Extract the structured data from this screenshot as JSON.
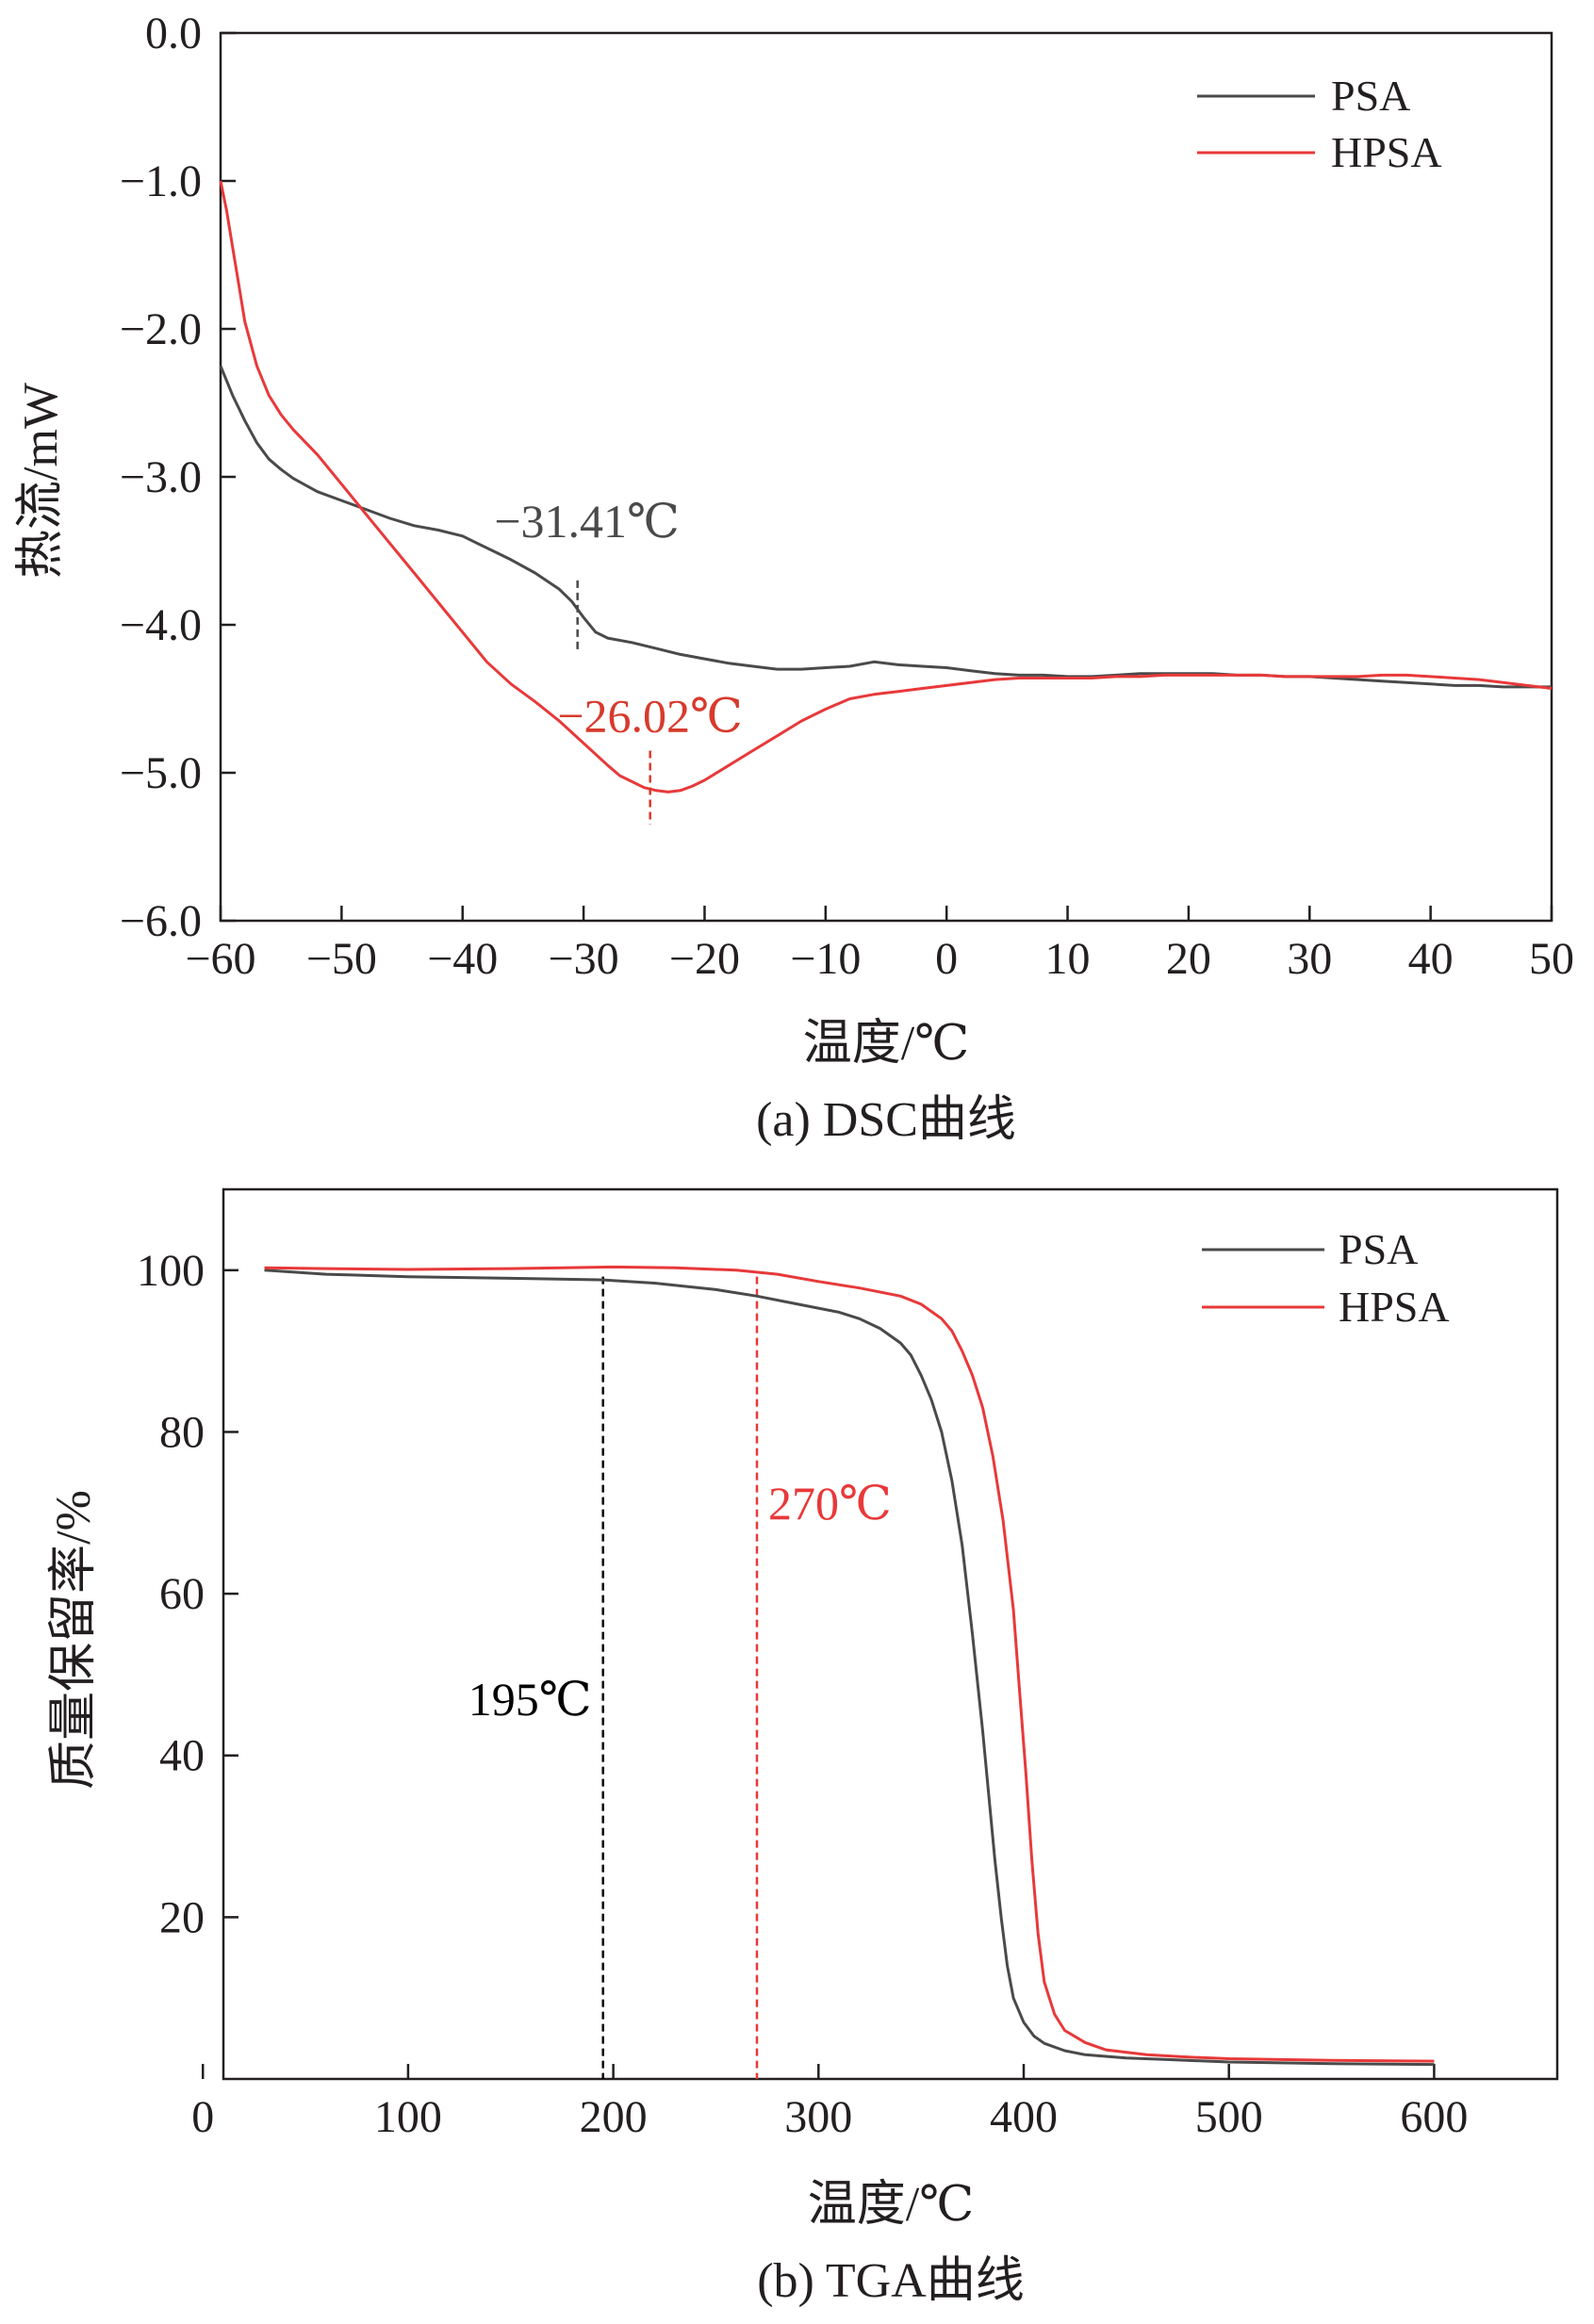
{
  "chart_data": [
    {
      "type": "line",
      "caption": "(a) DSC曲线",
      "xlabel": "温度/℃",
      "ylabel": "热流/mW",
      "xlim": [
        -60,
        50
      ],
      "ylim": [
        -6.0,
        0.0
      ],
      "xticks": [
        -60,
        -50,
        -40,
        -30,
        -20,
        -10,
        0,
        10,
        20,
        30,
        40,
        50
      ],
      "xtick_labels": [
        "−60",
        "−50",
        "−40",
        "−30",
        "−20",
        "−10",
        "0",
        "10",
        "20",
        "30",
        "40",
        "50"
      ],
      "yticks": [
        0,
        -1,
        -2,
        -3,
        -4,
        -5,
        -6
      ],
      "ytick_labels": [
        "0.0",
        "−1.0",
        "−2.0",
        "−3.0",
        "−4.0",
        "−5.0",
        "−6.0"
      ],
      "grid": false,
      "legend_position": "top-right",
      "series": [
        {
          "name": "PSA",
          "color": "#4a4a4a",
          "x": [
            -60,
            -59,
            -58,
            -57,
            -56,
            -55,
            -54,
            -52,
            -50,
            -48,
            -46,
            -44,
            -42,
            -40,
            -38,
            -36,
            -34,
            -32,
            -31,
            -30,
            -29,
            -28,
            -26,
            -24,
            -22,
            -20,
            -18,
            -16,
            -14,
            -12,
            -10,
            -8,
            -6,
            -4,
            -2,
            0,
            2,
            4,
            6,
            8,
            10,
            12,
            14,
            16,
            18,
            20,
            22,
            24,
            26,
            28,
            30,
            32,
            34,
            36,
            38,
            40,
            42,
            44,
            46,
            48,
            50
          ],
          "y": [
            -2.25,
            -2.45,
            -2.62,
            -2.77,
            -2.88,
            -2.95,
            -3.01,
            -3.1,
            -3.16,
            -3.22,
            -3.28,
            -3.33,
            -3.36,
            -3.4,
            -3.48,
            -3.56,
            -3.65,
            -3.76,
            -3.84,
            -3.95,
            -4.05,
            -4.09,
            -4.12,
            -4.16,
            -4.2,
            -4.23,
            -4.26,
            -4.28,
            -4.3,
            -4.3,
            -4.29,
            -4.28,
            -4.25,
            -4.27,
            -4.28,
            -4.29,
            -4.31,
            -4.33,
            -4.34,
            -4.34,
            -4.35,
            -4.35,
            -4.34,
            -4.33,
            -4.33,
            -4.33,
            -4.33,
            -4.34,
            -4.34,
            -4.35,
            -4.35,
            -4.36,
            -4.37,
            -4.38,
            -4.39,
            -4.4,
            -4.41,
            -4.41,
            -4.42,
            -4.42,
            -4.42
          ]
        },
        {
          "name": "HPSA",
          "color": "#e8393a",
          "x": [
            -60,
            -59.5,
            -59,
            -58.5,
            -58,
            -57,
            -56,
            -55,
            -54,
            -52,
            -50,
            -48,
            -46,
            -44,
            -42,
            -40,
            -38,
            -36,
            -34,
            -32,
            -30,
            -28,
            -27,
            -26,
            -25,
            -24,
            -23,
            -22,
            -21,
            -20,
            -18,
            -16,
            -14,
            -12,
            -10,
            -8,
            -6,
            -4,
            -2,
            0,
            2,
            4,
            6,
            8,
            10,
            12,
            14,
            16,
            18,
            20,
            22,
            24,
            26,
            28,
            30,
            32,
            34,
            36,
            38,
            40,
            42,
            44,
            46,
            48,
            50
          ],
          "y": [
            -1.0,
            -1.2,
            -1.45,
            -1.7,
            -1.95,
            -2.25,
            -2.45,
            -2.58,
            -2.68,
            -2.85,
            -3.05,
            -3.25,
            -3.45,
            -3.65,
            -3.85,
            -4.05,
            -4.25,
            -4.4,
            -4.52,
            -4.65,
            -4.8,
            -4.95,
            -5.02,
            -5.06,
            -5.1,
            -5.12,
            -5.13,
            -5.12,
            -5.09,
            -5.05,
            -4.95,
            -4.85,
            -4.75,
            -4.65,
            -4.57,
            -4.5,
            -4.47,
            -4.45,
            -4.43,
            -4.41,
            -4.39,
            -4.37,
            -4.36,
            -4.36,
            -4.36,
            -4.36,
            -4.35,
            -4.35,
            -4.34,
            -4.34,
            -4.34,
            -4.34,
            -4.34,
            -4.35,
            -4.35,
            -4.35,
            -4.35,
            -4.34,
            -4.34,
            -4.35,
            -4.36,
            -4.37,
            -4.39,
            -4.41,
            -4.43
          ]
        }
      ],
      "annotations": [
        {
          "text": "−31.41℃",
          "x": -30.5,
          "y_top": -3.7,
          "y_bottom": -4.17,
          "color": "#4a4a4a"
        },
        {
          "text": "−26.02℃",
          "x": -24.5,
          "y_top": -4.85,
          "y_bottom": -5.35,
          "color": "#d73a2c"
        }
      ]
    },
    {
      "type": "line",
      "caption": "(b) TGA曲线",
      "xlabel": "温度/℃",
      "ylabel": "质量保留率/%",
      "xlim": [
        10,
        660
      ],
      "ylim": [
        0,
        110
      ],
      "xticks": [
        0,
        100,
        200,
        300,
        400,
        500,
        600
      ],
      "xtick_labels": [
        "0",
        "100",
        "200",
        "300",
        "400",
        "500",
        "600"
      ],
      "yticks": [
        20,
        40,
        60,
        80,
        100
      ],
      "ytick_labels": [
        "20",
        "40",
        "60",
        "80",
        "100"
      ],
      "grid": false,
      "legend_position": "top-right",
      "series": [
        {
          "name": "PSA",
          "color": "#4a4a4a",
          "x": [
            30,
            60,
            100,
            150,
            195,
            220,
            250,
            270,
            290,
            310,
            320,
            330,
            340,
            345,
            350,
            355,
            360,
            365,
            370,
            375,
            380,
            383,
            386,
            389,
            392,
            395,
            400,
            405,
            410,
            420,
            430,
            450,
            470,
            500,
            550,
            600
          ],
          "y": [
            100,
            99.5,
            99.2,
            99.0,
            98.8,
            98.4,
            97.6,
            96.8,
            95.8,
            94.8,
            94.0,
            92.8,
            91.0,
            89.5,
            87.0,
            84.0,
            80.0,
            74.0,
            66.0,
            55.0,
            43.0,
            35.0,
            27.0,
            20.0,
            14.0,
            10.0,
            7.0,
            5.3,
            4.4,
            3.5,
            3.0,
            2.6,
            2.4,
            2.1,
            1.9,
            1.8
          ]
        },
        {
          "name": "HPSA",
          "color": "#e8393a",
          "x": [
            30,
            60,
            100,
            150,
            200,
            230,
            260,
            280,
            300,
            320,
            340,
            350,
            360,
            365,
            370,
            375,
            380,
            385,
            390,
            395,
            398,
            401,
            404,
            407,
            410,
            415,
            420,
            430,
            440,
            460,
            480,
            500,
            550,
            600
          ],
          "y": [
            100.3,
            100.2,
            100.1,
            100.2,
            100.4,
            100.3,
            100.0,
            99.5,
            98.6,
            97.8,
            96.8,
            95.8,
            94.0,
            92.5,
            90.0,
            87.0,
            83.0,
            77.0,
            69.0,
            58.0,
            48.0,
            38.0,
            27.0,
            18.0,
            12.0,
            8.0,
            6.0,
            4.5,
            3.6,
            3.0,
            2.7,
            2.5,
            2.3,
            2.2
          ]
        }
      ],
      "annotations": [
        {
          "text": "195℃",
          "x": 195,
          "color": "#000000",
          "style": "dashed-vertical"
        },
        {
          "text": "270℃",
          "x": 270,
          "color": "#e8393a",
          "style": "dashed-vertical"
        }
      ]
    }
  ]
}
